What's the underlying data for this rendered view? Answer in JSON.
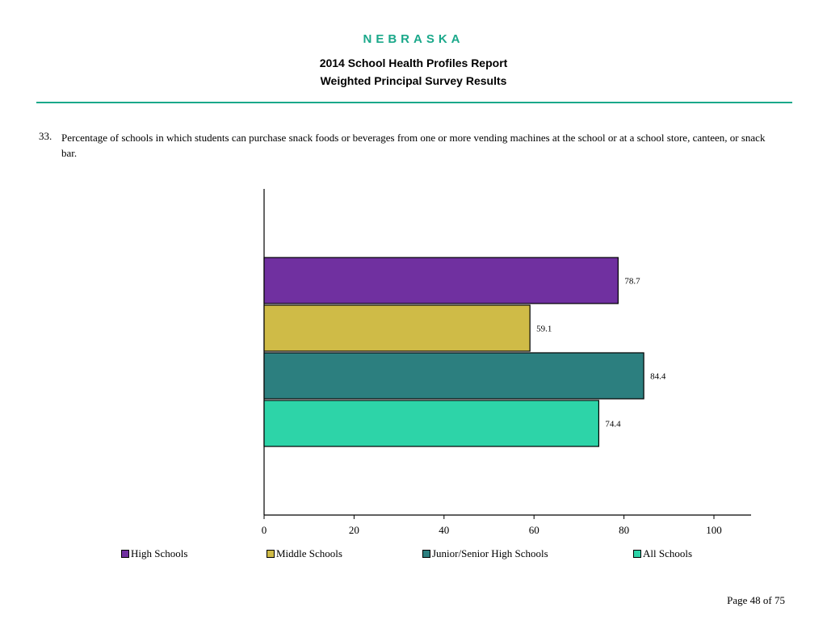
{
  "header": {
    "state": "NEBRASKA",
    "title_line1": "2014 School Health Profiles Report",
    "title_line2": "Weighted Principal Survey Results",
    "accent_color": "#1aa88a"
  },
  "question": {
    "number": "33.",
    "text": "Percentage of schools in which students can purchase snack foods or beverages from one or more vending machines at the school or at a school store, canteen, or snack bar."
  },
  "chart_data": {
    "type": "bar",
    "orientation": "horizontal",
    "series": [
      {
        "name": "High Schools",
        "value": 78.7,
        "label": "78.7",
        "color": "#7030a0"
      },
      {
        "name": "Middle Schools",
        "value": 59.1,
        "label": "59.1",
        "color": "#cfbb47"
      },
      {
        "name": "Junior/Senior High Schools",
        "value": 84.4,
        "label": "84.4",
        "color": "#2c7f7f"
      },
      {
        "name": "All Schools",
        "value": 74.4,
        "label": "74.4",
        "color": "#2dd4a8"
      }
    ],
    "xlim": [
      0,
      100
    ],
    "xticks": [
      "0",
      "20",
      "40",
      "60",
      "80",
      "100"
    ],
    "grid": false,
    "legend_position": "bottom"
  },
  "footer": {
    "page": "Page 48 of 75"
  }
}
